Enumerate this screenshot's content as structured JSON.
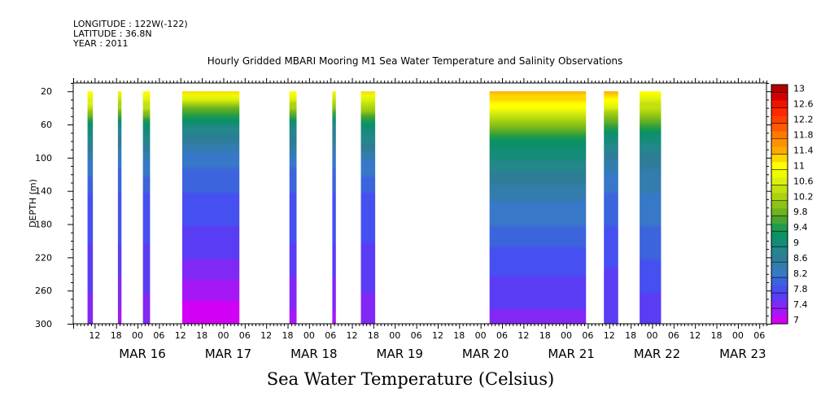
{
  "header": {
    "longitude": "LONGITUDE : 122W(-122)",
    "latitude": "LATITUDE : 36.8N",
    "year": "YEAR : 2011"
  },
  "title": "Hourly Gridded MBARI Mooring M1 Sea Water Temperature and Salinity Observations",
  "bottom_title": "Sea Water Temperature (Celsius)",
  "chart_data": {
    "type": "heatmap",
    "title": "Hourly Gridded MBARI Mooring M1 Sea Water Temperature and Salinity Observations",
    "ylabel": "DEPTH (m)",
    "xlabel": "",
    "colorbar_label": "Sea Water Temperature (Celsius)",
    "x_unit": "hours since MAR 15 00:00",
    "xlim": [
      6,
      200
    ],
    "ylim": [
      300,
      10
    ],
    "y_reversed": true,
    "y_ticks": [
      20,
      60,
      100,
      140,
      180,
      220,
      260,
      300
    ],
    "hour_ticks": [
      "12",
      "18",
      "00",
      "06",
      "12",
      "18",
      "00",
      "06",
      "12",
      "18",
      "00",
      "06",
      "12",
      "18",
      "00",
      "06",
      "12",
      "18",
      "00",
      "06",
      "12",
      "18",
      "00",
      "06",
      "12",
      "18",
      "00",
      "06",
      "12",
      "18",
      "00",
      "06"
    ],
    "hour_tick_start": 12,
    "hour_tick_step": 6,
    "date_labels": [
      {
        "label": "MAR 16",
        "hour": 24
      },
      {
        "label": "MAR 17",
        "hour": 48
      },
      {
        "label": "MAR 18",
        "hour": 72
      },
      {
        "label": "MAR 19",
        "hour": 96
      },
      {
        "label": "MAR 20",
        "hour": 120
      },
      {
        "label": "MAR 21",
        "hour": 144
      },
      {
        "label": "MAR 22",
        "hour": 168
      },
      {
        "label": "MAR 23",
        "hour": 192
      }
    ],
    "colorbar": {
      "levels": [
        7,
        7.2,
        7.4,
        7.6,
        7.8,
        8,
        8.2,
        8.4,
        8.6,
        8.8,
        9,
        9.2,
        9.4,
        9.6,
        9.8,
        10,
        10.2,
        10.4,
        10.6,
        10.8,
        11,
        11.2,
        11.4,
        11.6,
        11.8,
        12,
        12.2,
        12.4,
        12.6,
        12.8,
        13,
        13.2
      ],
      "tick_labels": [
        "7",
        "7.4",
        "7.8",
        "8.2",
        "8.6",
        "9",
        "9.4",
        "9.8",
        "10.2",
        "10.6",
        "11",
        "11.4",
        "11.8",
        "12.2",
        "12.6",
        "13"
      ],
      "colors": [
        "#d200f5",
        "#a518f5",
        "#8228f5",
        "#5a3cf5",
        "#4650f0",
        "#3c64dc",
        "#3778c8",
        "#327dad",
        "#2d7d96",
        "#23878c",
        "#148c78",
        "#0a9164",
        "#1e9b4b",
        "#46a532",
        "#6eb41e",
        "#8cc314",
        "#aad20f",
        "#c3e10f",
        "#dcf00f",
        "#f0fa00",
        "#ffff00",
        "#ffd700",
        "#ffaa00",
        "#ff9100",
        "#ff7800",
        "#ff5a00",
        "#ff4100",
        "#ff2800",
        "#f01400",
        "#d20000",
        "#b40000"
      ]
    },
    "data_segments": [
      {
        "start_hour": 10,
        "end_hour": 11.5,
        "profile": [
          [
            20,
            11.0
          ],
          [
            40,
            10.5
          ],
          [
            60,
            9.2
          ],
          [
            80,
            8.8
          ],
          [
            100,
            8.4
          ],
          [
            140,
            8.0
          ],
          [
            200,
            7.8
          ],
          [
            260,
            7.6
          ],
          [
            300,
            7.4
          ]
        ]
      },
      {
        "start_hour": 18.5,
        "end_hour": 19.5,
        "profile": [
          [
            20,
            10.9
          ],
          [
            40,
            10.2
          ],
          [
            60,
            9.0
          ],
          [
            80,
            8.7
          ],
          [
            100,
            8.3
          ],
          [
            140,
            8.0
          ],
          [
            200,
            7.8
          ],
          [
            260,
            7.5
          ],
          [
            300,
            7.3
          ]
        ]
      },
      {
        "start_hour": 25.5,
        "end_hour": 27.5,
        "profile": [
          [
            20,
            11.1
          ],
          [
            40,
            10.4
          ],
          [
            60,
            9.2
          ],
          [
            80,
            8.8
          ],
          [
            100,
            8.4
          ],
          [
            140,
            8.0
          ],
          [
            200,
            7.8
          ],
          [
            260,
            7.6
          ],
          [
            300,
            7.4
          ]
        ]
      },
      {
        "start_hour": 36.5,
        "end_hour": 52.5,
        "profile": [
          [
            20,
            11.3
          ],
          [
            30,
            10.6
          ],
          [
            40,
            9.8
          ],
          [
            60,
            9.0
          ],
          [
            80,
            8.6
          ],
          [
            100,
            8.3
          ],
          [
            140,
            8.0
          ],
          [
            180,
            7.8
          ],
          [
            220,
            7.6
          ],
          [
            260,
            7.3
          ],
          [
            300,
            7.0
          ]
        ]
      },
      {
        "start_hour": 66.5,
        "end_hour": 68.5,
        "profile": [
          [
            20,
            11.0
          ],
          [
            40,
            10.2
          ],
          [
            60,
            9.0
          ],
          [
            80,
            8.7
          ],
          [
            100,
            8.3
          ],
          [
            140,
            8.0
          ],
          [
            200,
            7.8
          ],
          [
            260,
            7.5
          ],
          [
            300,
            7.3
          ]
        ]
      },
      {
        "start_hour": 78.5,
        "end_hour": 79.5,
        "profile": [
          [
            20,
            10.9
          ],
          [
            40,
            10.0
          ],
          [
            60,
            8.9
          ],
          [
            80,
            8.6
          ],
          [
            100,
            8.3
          ],
          [
            140,
            8.0
          ],
          [
            200,
            7.8
          ],
          [
            260,
            7.5
          ],
          [
            300,
            7.3
          ]
        ]
      },
      {
        "start_hour": 86.5,
        "end_hour": 90.5,
        "profile": [
          [
            20,
            11.2
          ],
          [
            40,
            10.3
          ],
          [
            60,
            9.2
          ],
          [
            80,
            8.8
          ],
          [
            100,
            8.4
          ],
          [
            140,
            8.0
          ],
          [
            200,
            7.8
          ],
          [
            260,
            7.6
          ],
          [
            300,
            7.5
          ]
        ]
      },
      {
        "start_hour": 122.5,
        "end_hour": 149.5,
        "profile": [
          [
            20,
            11.5
          ],
          [
            40,
            11.0
          ],
          [
            60,
            10.0
          ],
          [
            80,
            9.3
          ],
          [
            100,
            9.0
          ],
          [
            140,
            8.5
          ],
          [
            180,
            8.2
          ],
          [
            220,
            7.9
          ],
          [
            260,
            7.7
          ],
          [
            300,
            7.5
          ]
        ]
      },
      {
        "start_hour": 154.5,
        "end_hour": 158.5,
        "profile": [
          [
            20,
            11.4
          ],
          [
            40,
            10.6
          ],
          [
            60,
            9.6
          ],
          [
            80,
            9.0
          ],
          [
            100,
            8.6
          ],
          [
            140,
            8.2
          ],
          [
            200,
            7.9
          ],
          [
            260,
            7.7
          ],
          [
            300,
            7.6
          ]
        ]
      },
      {
        "start_hour": 164.5,
        "end_hour": 170.5,
        "profile": [
          [
            20,
            11.1
          ],
          [
            40,
            10.4
          ],
          [
            60,
            9.6
          ],
          [
            80,
            9.0
          ],
          [
            100,
            8.7
          ],
          [
            140,
            8.4
          ],
          [
            200,
            8.1
          ],
          [
            260,
            7.8
          ],
          [
            300,
            7.7
          ]
        ]
      }
    ]
  }
}
